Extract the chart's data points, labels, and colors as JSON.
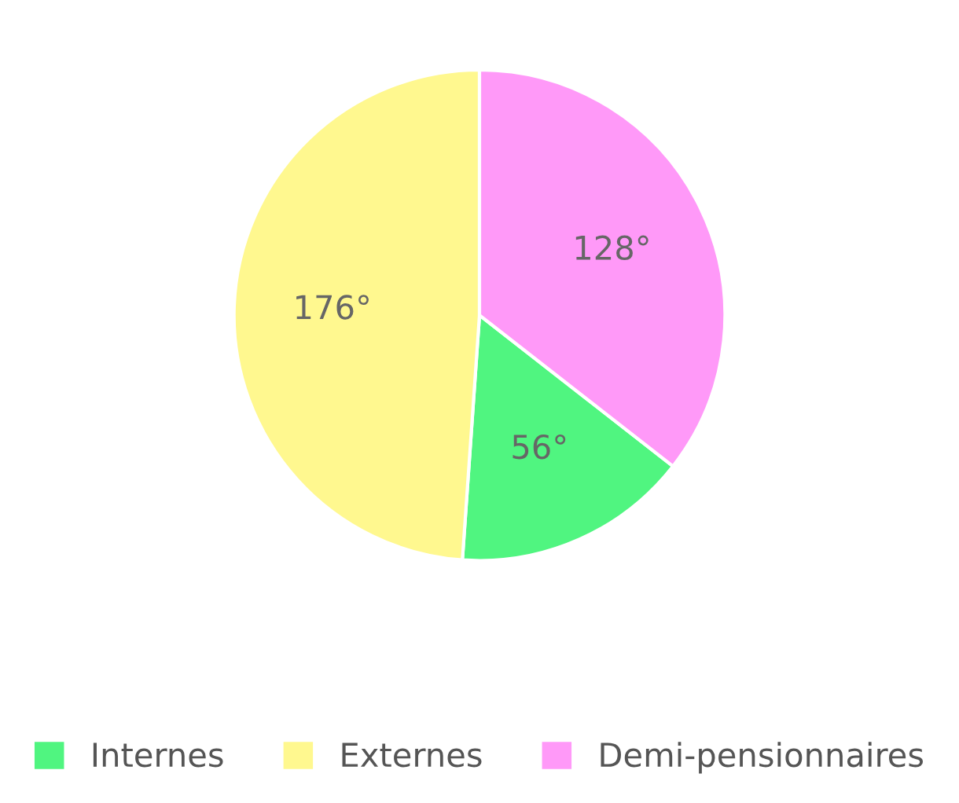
{
  "chart_data": {
    "type": "pie",
    "categories": [
      "Internes",
      "Externes",
      "Demi-pensionnaires"
    ],
    "values": [
      56,
      176,
      128
    ],
    "colors": [
      "#50f580",
      "#fff88f",
      "#ff99f8"
    ],
    "value_labels": [
      "56°",
      "176°",
      "128°"
    ],
    "legend": "bottom"
  }
}
